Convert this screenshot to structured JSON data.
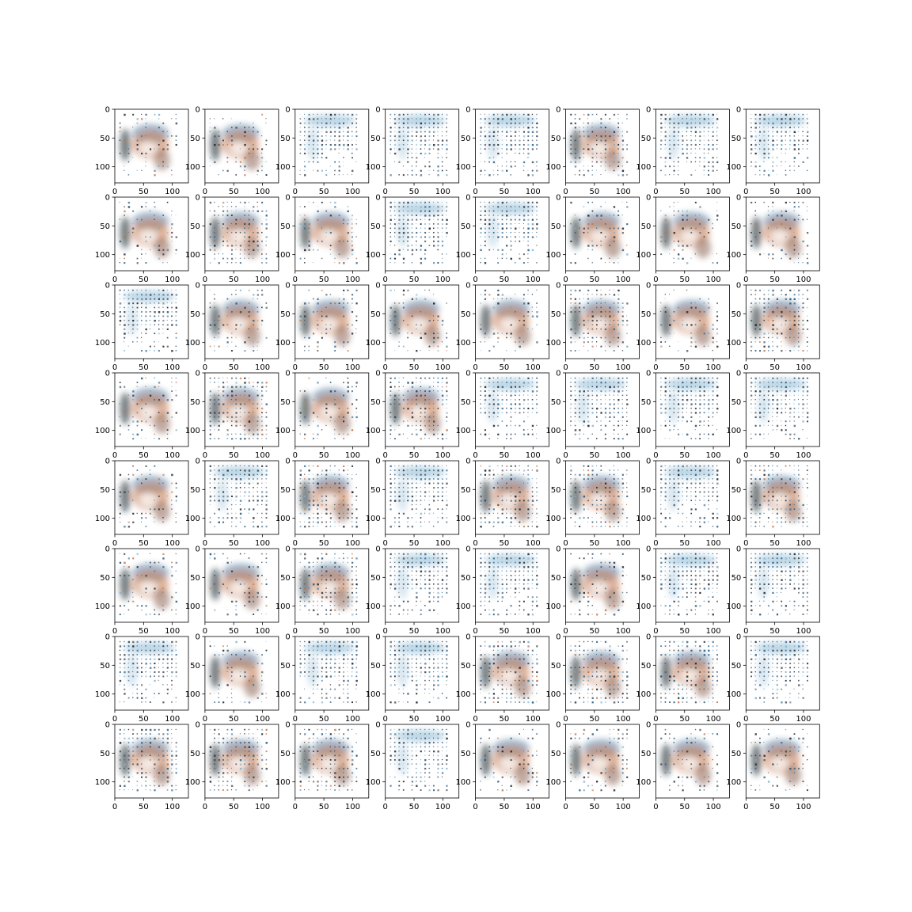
{
  "figure": {
    "grid_rows": 8,
    "grid_cols": 8,
    "axes": {
      "x_ticks": [
        "0",
        "50",
        "100"
      ],
      "y_ticks": [
        "0",
        "50",
        "100"
      ],
      "x_tick_values": [
        0,
        50,
        100
      ],
      "y_tick_values": [
        0,
        50,
        100
      ],
      "xlim": [
        0,
        128
      ],
      "ylim": [
        128,
        0
      ]
    },
    "palette": {
      "blue": "#2e5f86",
      "light_blue": "#7fb0cf",
      "dark": "#1f2630",
      "orange": "#c1703f",
      "brown": "#7a4c3a"
    },
    "samples": [
      {
        "kind": "blob"
      },
      {
        "kind": "blob"
      },
      {
        "kind": "grid"
      },
      {
        "kind": "grid"
      },
      {
        "kind": "grid"
      },
      {
        "kind": "mixed"
      },
      {
        "kind": "grid"
      },
      {
        "kind": "grid"
      },
      {
        "kind": "blob"
      },
      {
        "kind": "mixed"
      },
      {
        "kind": "blob"
      },
      {
        "kind": "grid"
      },
      {
        "kind": "grid"
      },
      {
        "kind": "blob"
      },
      {
        "kind": "blob"
      },
      {
        "kind": "blob"
      },
      {
        "kind": "grid"
      },
      {
        "kind": "blob"
      },
      {
        "kind": "blob"
      },
      {
        "kind": "blob"
      },
      {
        "kind": "blob"
      },
      {
        "kind": "mixed"
      },
      {
        "kind": "blob"
      },
      {
        "kind": "mixed"
      },
      {
        "kind": "blob"
      },
      {
        "kind": "mixed"
      },
      {
        "kind": "blob"
      },
      {
        "kind": "mixed"
      },
      {
        "kind": "grid"
      },
      {
        "kind": "grid"
      },
      {
        "kind": "grid"
      },
      {
        "kind": "grid"
      },
      {
        "kind": "blob"
      },
      {
        "kind": "grid"
      },
      {
        "kind": "mixed"
      },
      {
        "kind": "grid"
      },
      {
        "kind": "mixed"
      },
      {
        "kind": "mixed"
      },
      {
        "kind": "grid"
      },
      {
        "kind": "mixed"
      },
      {
        "kind": "blob"
      },
      {
        "kind": "blob"
      },
      {
        "kind": "mixed"
      },
      {
        "kind": "grid"
      },
      {
        "kind": "grid"
      },
      {
        "kind": "blob"
      },
      {
        "kind": "grid"
      },
      {
        "kind": "grid"
      },
      {
        "kind": "grid"
      },
      {
        "kind": "blob"
      },
      {
        "kind": "grid"
      },
      {
        "kind": "grid"
      },
      {
        "kind": "mixed"
      },
      {
        "kind": "mixed"
      },
      {
        "kind": "mixed"
      },
      {
        "kind": "grid"
      },
      {
        "kind": "mixed"
      },
      {
        "kind": "mixed"
      },
      {
        "kind": "mixed"
      },
      {
        "kind": "grid"
      },
      {
        "kind": "blob"
      },
      {
        "kind": "blob"
      },
      {
        "kind": "blob"
      },
      {
        "kind": "blob"
      }
    ]
  }
}
